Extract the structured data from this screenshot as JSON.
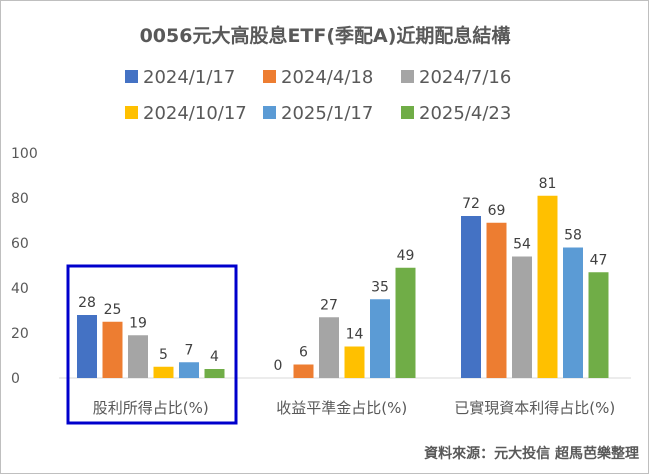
{
  "chart_data": {
    "type": "bar",
    "title": "0056元大高股息ETF(季配A)近期配息結構",
    "categories": [
      "股利所得占比(%)",
      "收益平準金占比(%)",
      "已實現資本利得占比(%)"
    ],
    "series": [
      {
        "name": "2024/1/17",
        "color": "#4472C4",
        "values": [
          28,
          0,
          72
        ]
      },
      {
        "name": "2024/4/18",
        "color": "#ED7D31",
        "values": [
          25,
          6,
          69
        ]
      },
      {
        "name": "2024/7/16",
        "color": "#A5A5A5",
        "values": [
          19,
          27,
          54
        ]
      },
      {
        "name": "2024/10/17",
        "color": "#FFC000",
        "values": [
          5,
          14,
          81
        ]
      },
      {
        "name": "2025/1/17",
        "color": "#5B9BD5",
        "values": [
          7,
          35,
          58
        ]
      },
      {
        "name": "2025/4/23",
        "color": "#70AD47",
        "values": [
          4,
          49,
          47
        ]
      }
    ],
    "ylim": [
      0,
      100
    ],
    "yticks": [
      0,
      20,
      40,
      60,
      80,
      100
    ],
    "grid": false,
    "legend": "top",
    "highlight": {
      "category_index": 0,
      "color": "#0000CC"
    },
    "source": "資料來源：元大投信 超馬芭樂整理"
  }
}
